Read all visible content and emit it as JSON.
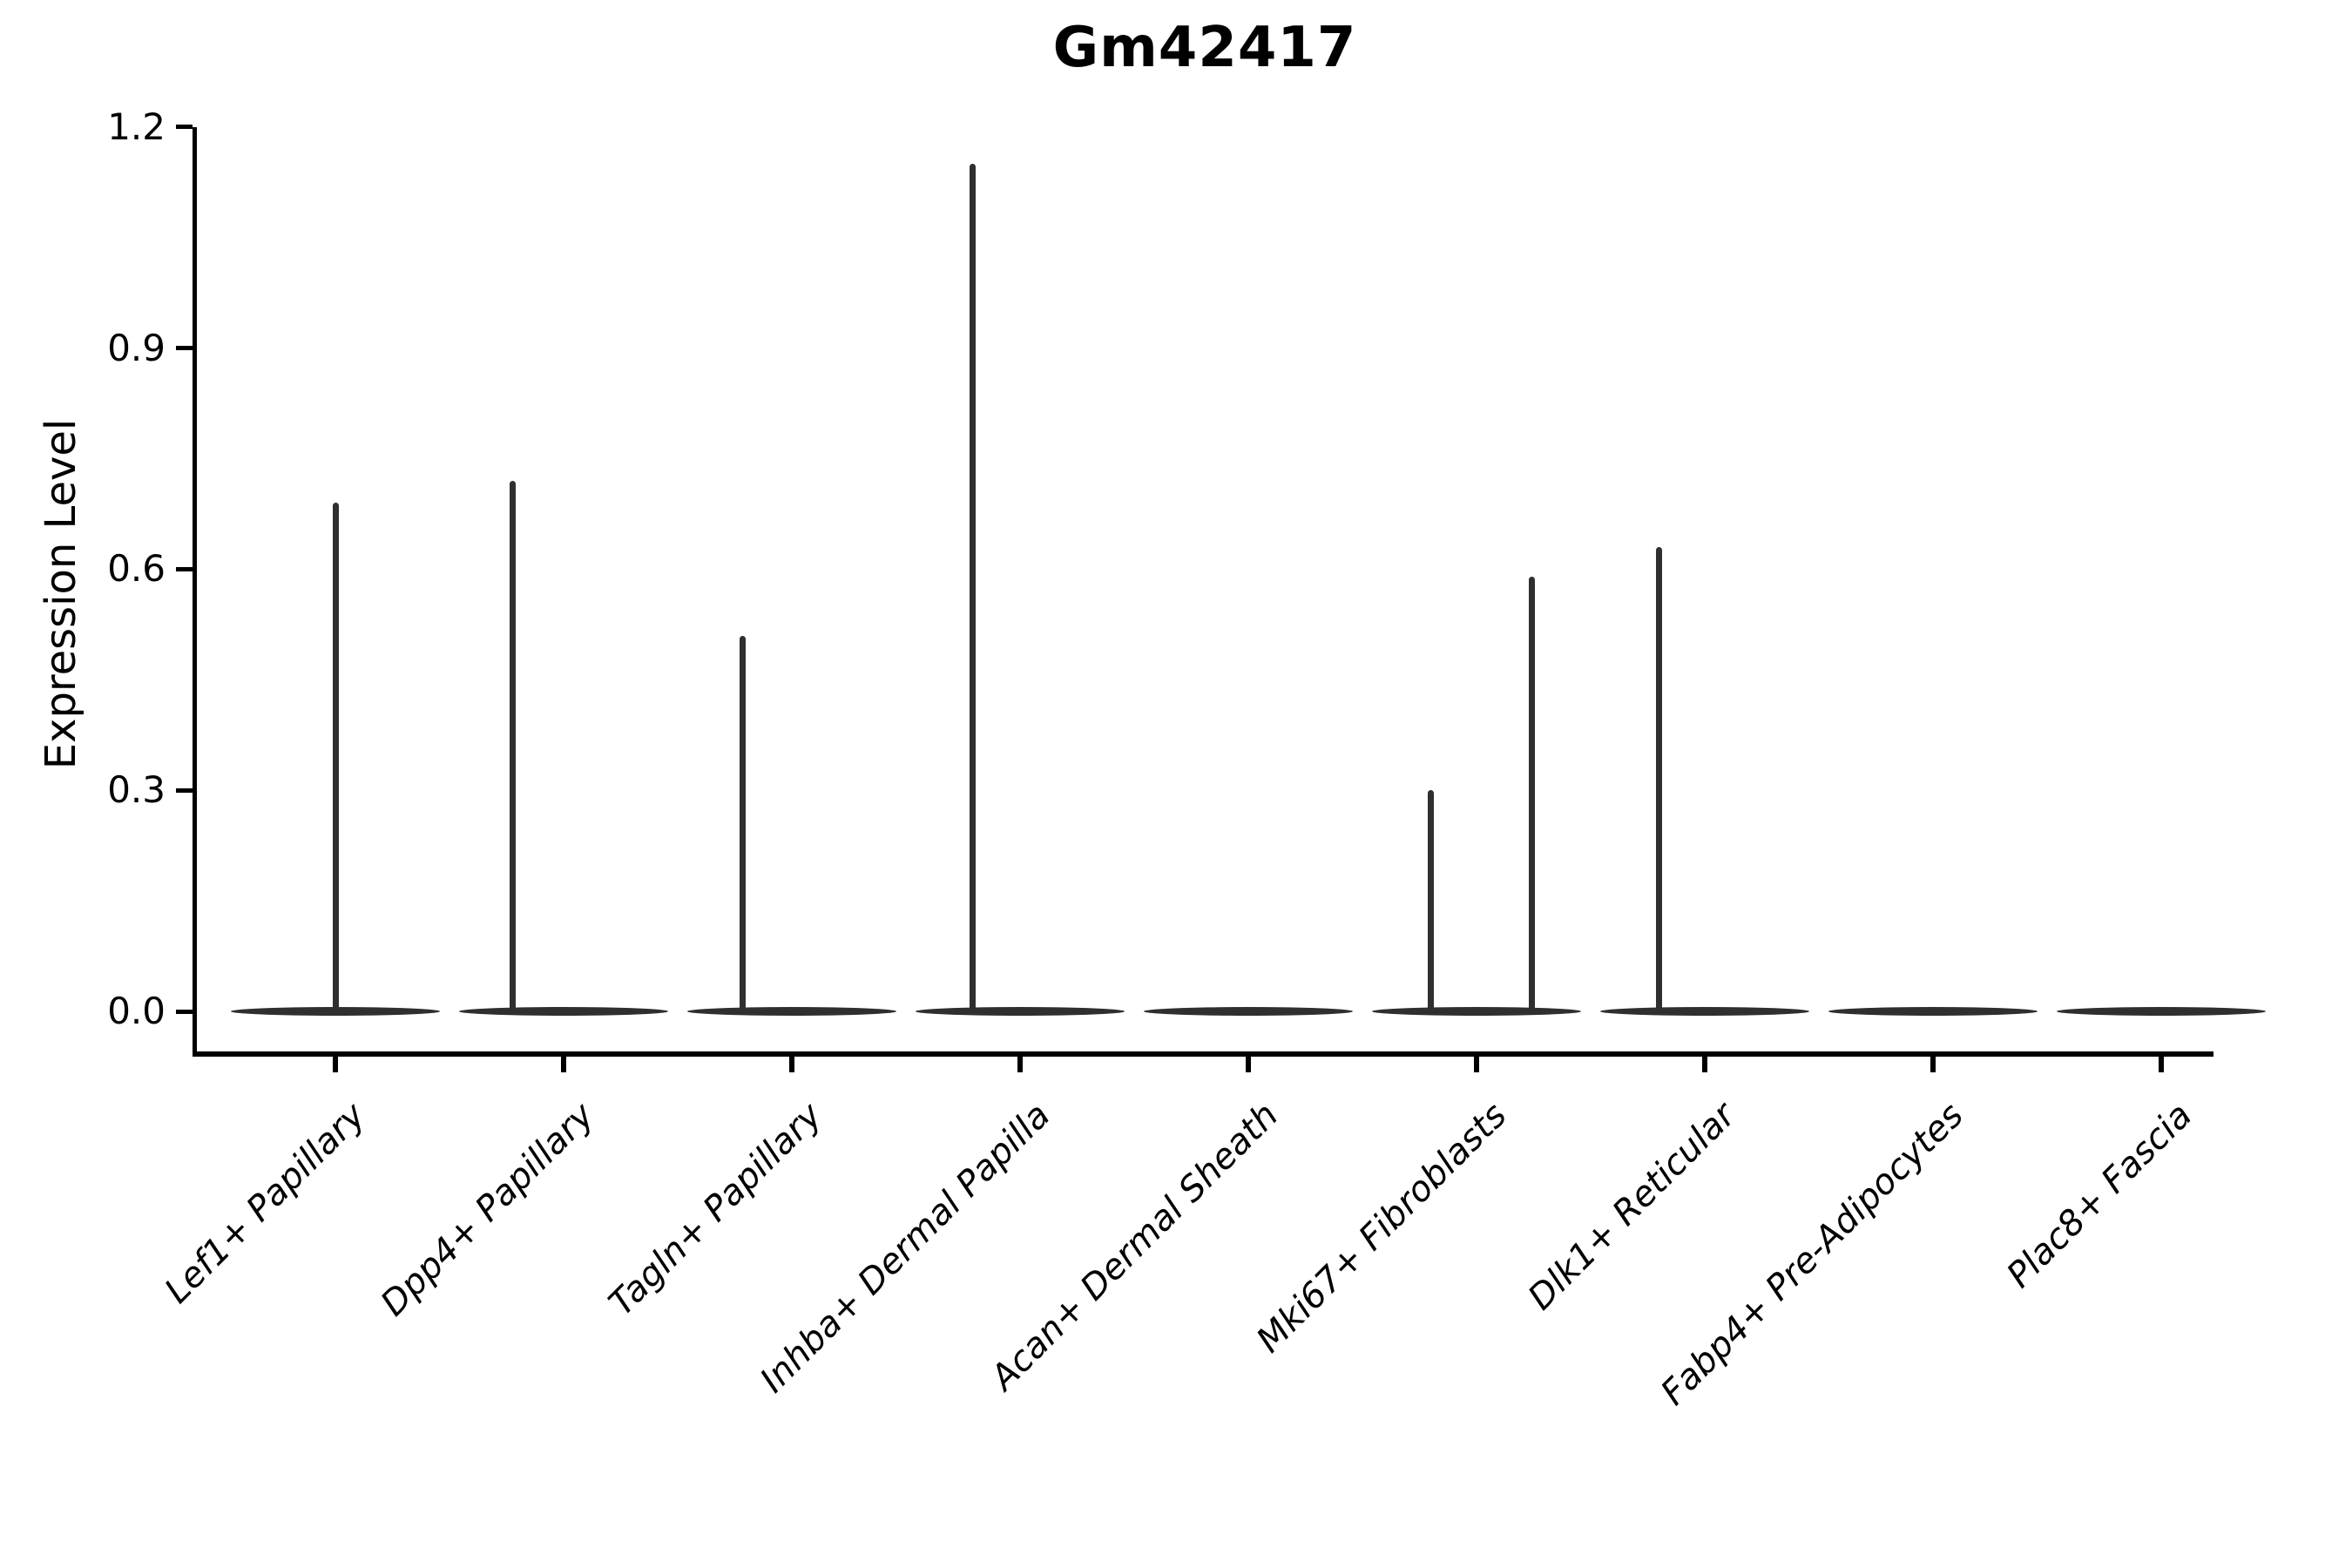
{
  "figure": {
    "title": "Gm42417"
  },
  "chart_data": {
    "type": "violin",
    "title": "Gm42417",
    "xlabel": "",
    "ylabel": "Expression Level",
    "ylim": [
      0,
      1.2
    ],
    "yticks": [
      0.0,
      0.3,
      0.6,
      0.9,
      1.2
    ],
    "ytick_labels": [
      "0.0",
      "0.3",
      "0.6",
      "0.9",
      "1.2"
    ],
    "grid": false,
    "legend": "none",
    "description": "Violin plot of single-gene expression per cell type; each category shows a wide flat density at 0 and thin spikes reaching the maximum expressed values.",
    "categories": [
      {
        "label": "Lef1+ Papillary",
        "max_expression": 0.69,
        "spikes": [
          {
            "dx": 0,
            "value": 0.69
          }
        ]
      },
      {
        "label": "Dpp4+ Papillary",
        "max_expression": 0.72,
        "spikes": [
          {
            "dx": -59,
            "value": 0.72
          }
        ]
      },
      {
        "label": "Tagln+ Papillary",
        "max_expression": 0.51,
        "spikes": [
          {
            "dx": -57,
            "value": 0.51
          }
        ]
      },
      {
        "label": "Inhba+ Dermal Papilla",
        "max_expression": 1.15,
        "spikes": [
          {
            "dx": -55,
            "value": 1.15
          }
        ]
      },
      {
        "label": "Acan+ Dermal Sheath",
        "max_expression": 0.0,
        "spikes": []
      },
      {
        "label": "Mki67+ Fibroblasts",
        "max_expression": 0.59,
        "spikes": [
          {
            "dx": -53,
            "value": 0.3
          },
          {
            "dx": 63,
            "value": 0.59
          }
        ]
      },
      {
        "label": "Dlk1+ Reticular",
        "max_expression": 0.63,
        "spikes": [
          {
            "dx": -53,
            "value": 0.63
          }
        ]
      },
      {
        "label": "Fabp4+ Pre-Adipocytes",
        "max_expression": 0.0,
        "spikes": []
      },
      {
        "label": "Plac8+ Fascia",
        "max_expression": 0.0,
        "spikes": []
      }
    ],
    "colors": {
      "violin": "#2f2f2f",
      "axis": "#000000",
      "text": "#000000",
      "background": "#ffffff"
    }
  }
}
